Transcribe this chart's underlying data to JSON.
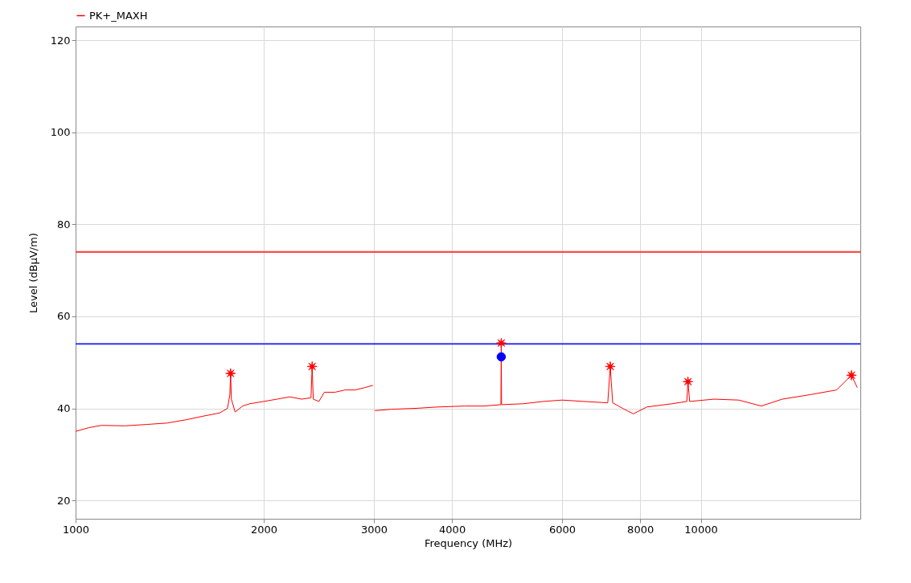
{
  "chart_data": {
    "type": "line",
    "xlabel": "Frequency (MHz)",
    "ylabel": "Level (dBµV/m)",
    "log": "x",
    "xlim": [
      1000,
      18000
    ],
    "xticks": [
      1000,
      2000,
      3000,
      4000,
      6000,
      8000,
      10000
    ],
    "ylim": [
      16,
      123
    ],
    "yticks": [
      20,
      40,
      60,
      80,
      100,
      120
    ],
    "grid": true,
    "legend": "top left",
    "line_style": "solid",
    "series": [
      {
        "name": "PK+_MAXH",
        "color": "#ff0000",
        "type": "line",
        "x": [
          1000,
          1050,
          1100,
          1200,
          1300,
          1400,
          1500,
          1600,
          1700,
          1750,
          1765,
          1770,
          1775,
          1800,
          1850,
          1900,
          2000,
          2100,
          2200,
          2300,
          2380,
          2390,
          2400,
          2450,
          2500,
          2600,
          2700,
          2800,
          2900,
          2990,
          3000,
          3010,
          3200,
          3500,
          3800,
          4200,
          4500,
          4790,
          4796,
          4802,
          5200,
          5600,
          6000,
          6500,
          7100,
          7165,
          7230,
          7500,
          7800,
          8200,
          9000,
          9500,
          9540,
          9600,
          10500,
          11500,
          12500,
          13500,
          15000,
          16500,
          17420,
          17800
        ],
        "values": [
          35,
          35.8,
          36.3,
          36.2,
          36.5,
          36.8,
          37.5,
          38.3,
          39,
          40,
          43,
          47.6,
          42,
          39.2,
          40.5,
          41,
          41.5,
          42,
          42.5,
          42,
          42.3,
          49.1,
          42,
          41.5,
          43.5,
          43.5,
          44,
          44,
          44.5,
          45,
          null,
          39.5,
          39.8,
          40,
          40.3,
          40.5,
          40.5,
          40.8,
          54.2,
          40.8,
          41,
          41.5,
          41.8,
          41.5,
          41.2,
          49.1,
          41.2,
          40,
          38.8,
          40.3,
          41,
          41.5,
          45.8,
          41.5,
          42,
          41.8,
          40.5,
          42,
          43,
          44,
          47.2,
          44.5
        ]
      },
      {
        "color": "#ff0000",
        "type": "scatter",
        "marker": "star",
        "x": [
          1770,
          2390,
          4796,
          7165,
          9540,
          17420
        ],
        "values": [
          47.6,
          49.1,
          54.2,
          49.1,
          45.8,
          47.2
        ]
      },
      {
        "color": "#0000ff",
        "type": "scatter",
        "marker": "circle",
        "x": [
          4796
        ],
        "values": [
          51.2
        ]
      }
    ],
    "ref_lines": [
      {
        "axis": "y",
        "value": 74,
        "color": "#ff3333"
      },
      {
        "axis": "y",
        "value": 54,
        "color": "#3333ff"
      }
    ]
  }
}
